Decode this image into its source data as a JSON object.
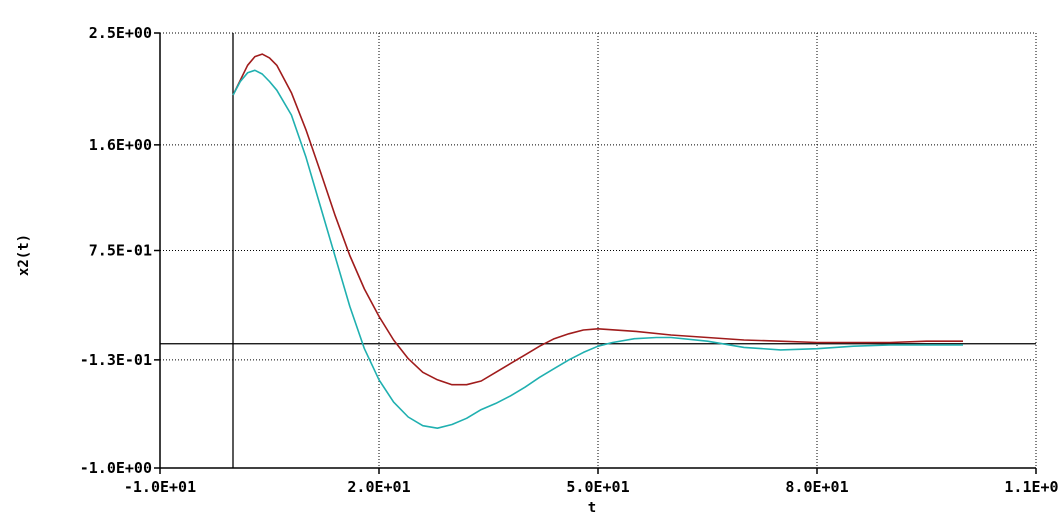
{
  "chart_data": {
    "type": "line",
    "title": "",
    "xlabel": "t",
    "ylabel": "x2(t)",
    "xlim": [
      -10,
      110
    ],
    "ylim": [
      -1.0,
      2.5
    ],
    "grid": true,
    "x_ticks": [
      -10,
      20,
      50,
      80,
      110
    ],
    "x_tick_labels": [
      "-1.0E+01",
      "2.0E+01",
      "5.0E+01",
      "8.0E+01",
      "1.1E+02"
    ],
    "y_ticks": [
      -1.0,
      -0.13,
      0.75,
      1.6,
      2.5
    ],
    "y_tick_labels": [
      "-1.0E+00",
      "-1.3E-01",
      "7.5E-01",
      "1.6E+00",
      "2.5E+00"
    ],
    "reference_lines": {
      "vertical_x": 0,
      "horizontal_y": 0
    },
    "series": [
      {
        "color": "#a01c1c",
        "x": [
          0,
          1,
          2,
          3,
          4,
          5,
          6,
          8,
          10,
          12,
          14,
          16,
          18,
          20,
          22,
          24,
          26,
          28,
          30,
          32,
          34,
          36,
          38,
          40,
          42,
          44,
          46,
          48,
          50,
          55,
          60,
          65,
          70,
          75,
          80,
          85,
          90,
          95,
          100
        ],
        "y": [
          2.0,
          2.12,
          2.24,
          2.31,
          2.33,
          2.3,
          2.24,
          2.02,
          1.72,
          1.38,
          1.03,
          0.71,
          0.44,
          0.22,
          0.03,
          -0.12,
          -0.23,
          -0.29,
          -0.33,
          -0.33,
          -0.3,
          -0.23,
          -0.16,
          -0.09,
          -0.02,
          0.04,
          0.08,
          0.11,
          0.12,
          0.1,
          0.07,
          0.05,
          0.03,
          0.02,
          0.01,
          0.01,
          0.01,
          0.02,
          0.02
        ]
      },
      {
        "color": "#20b0b0",
        "x": [
          0,
          1,
          2,
          3,
          4,
          5,
          6,
          8,
          10,
          12,
          14,
          16,
          18,
          20,
          22,
          24,
          26,
          28,
          30,
          32,
          34,
          36,
          38,
          40,
          42,
          44,
          46,
          48,
          50,
          52,
          55,
          58,
          60,
          65,
          70,
          75,
          80,
          85,
          90,
          95,
          100
        ],
        "y": [
          2.0,
          2.11,
          2.18,
          2.2,
          2.17,
          2.11,
          2.04,
          1.84,
          1.5,
          1.1,
          0.7,
          0.3,
          -0.04,
          -0.29,
          -0.47,
          -0.59,
          -0.66,
          -0.68,
          -0.65,
          -0.6,
          -0.53,
          -0.48,
          -0.42,
          -0.35,
          -0.27,
          -0.2,
          -0.13,
          -0.07,
          -0.02,
          0.01,
          0.04,
          0.05,
          0.05,
          0.02,
          -0.03,
          -0.05,
          -0.04,
          -0.02,
          -0.01,
          -0.01,
          -0.01
        ]
      }
    ]
  }
}
